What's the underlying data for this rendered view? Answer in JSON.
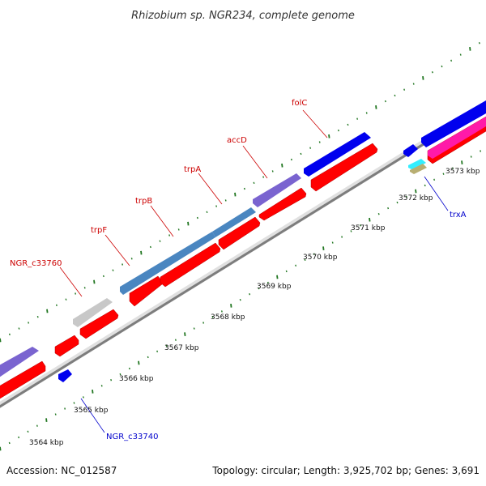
{
  "title": "Rhizobium sp. NGR234, complete genome",
  "footer": {
    "accession": "Accession: NC_012587",
    "summary": "Topology: circular; Length: 3,925,702 bp; Genes: 3,691"
  },
  "kbp_labels": [
    "3564 kbp",
    "3565 kbp",
    "3566 kbp",
    "3567 kbp",
    "3568 kbp",
    "3569 kbp",
    "3570 kbp",
    "3571 kbp",
    "3572 kbp",
    "3573 kbp"
  ],
  "gene_labels": {
    "folC": "folC",
    "accD": "accD",
    "trpA": "trpA",
    "trpB": "trpB",
    "trpF": "trpF",
    "ngr_c33760": "NGR_c33760",
    "ngr_c33740": "NGR_c33740",
    "trxA": "trxA"
  },
  "colors": {
    "forward_label": "#cc0000",
    "reverse_label": "#0000cc",
    "cds": "#ff0000",
    "gene_forward": "#0000ee",
    "gene_trp": "#4a86c0",
    "gene_purple": "#7a64d0",
    "gene_gray": "#c8c8c8",
    "gene_pink": "#ff1aa8",
    "gene_cyan": "#33eeff",
    "gene_olive": "#b8ae72",
    "backbone": "#8a8a8a",
    "tick": "#227722"
  }
}
